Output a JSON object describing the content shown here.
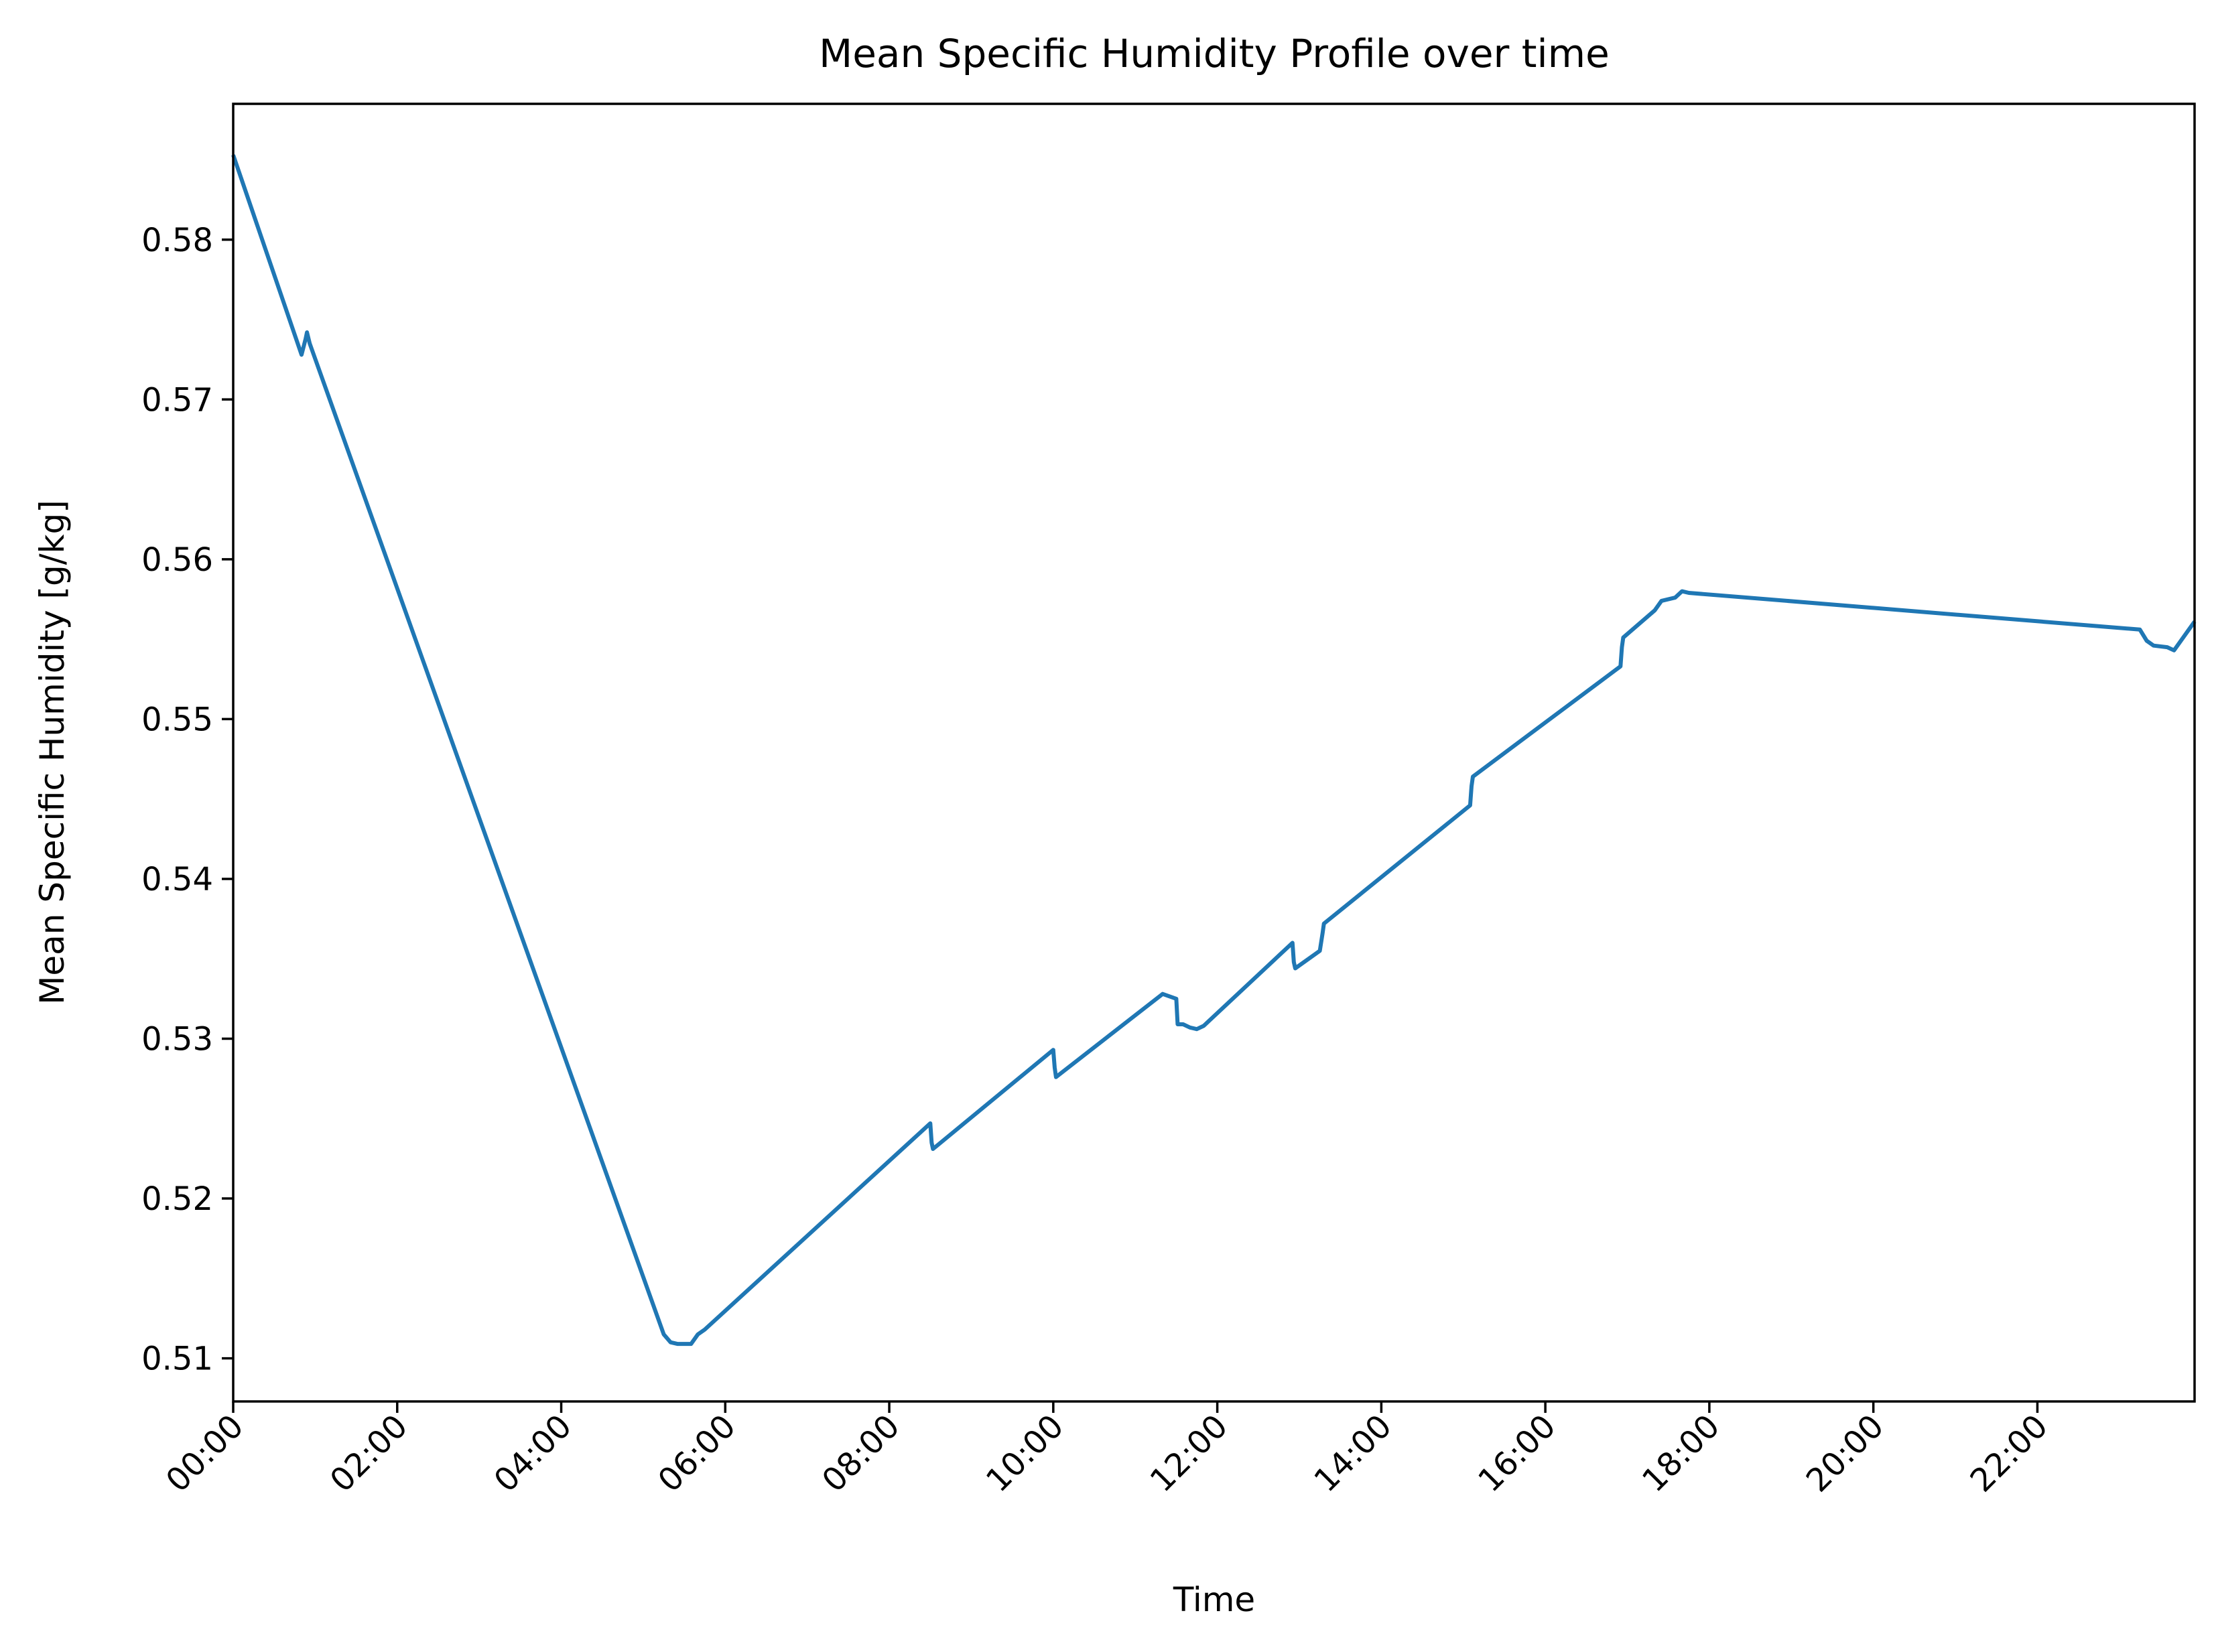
{
  "chart_data": {
    "type": "line",
    "title": "Mean Specific Humidity Profile over time",
    "xlabel": "Time",
    "ylabel": "Mean Specific Humidity [g/kg]",
    "x_unit": "time of day (HH:MM)",
    "xlim": [
      "00:00",
      "23:55"
    ],
    "ylim": [
      0.5073,
      0.5885
    ],
    "x_ticks": [
      "00:00",
      "02:00",
      "04:00",
      "06:00",
      "08:00",
      "10:00",
      "12:00",
      "14:00",
      "16:00",
      "18:00",
      "20:00",
      "22:00"
    ],
    "y_ticks": [
      0.51,
      0.52,
      0.53,
      0.54,
      0.55,
      0.56,
      0.57,
      0.58
    ],
    "grid": false,
    "legend": "none",
    "colors": {
      "line": "#1f77b4"
    },
    "series": [
      {
        "x": [
          "00:00",
          "00:50",
          "00:53",
          "00:54",
          "00:56",
          "05:15",
          "05:20",
          "05:25",
          "05:35",
          "05:40",
          "05:45",
          "08:30",
          "08:31",
          "08:32",
          "10:00",
          "10:01",
          "10:02",
          "11:20",
          "11:30",
          "11:31",
          "11:35",
          "11:40",
          "11:45",
          "11:50",
          "12:55",
          "12:56",
          "12:57",
          "13:15",
          "13:17",
          "13:18",
          "15:05",
          "15:06",
          "15:07",
          "16:55",
          "16:56",
          "16:57",
          "17:20",
          "17:25",
          "17:35",
          "17:40",
          "17:45",
          "23:15",
          "23:20",
          "23:25",
          "23:35",
          "23:40",
          "23:55"
        ],
        "y": [
          0.5853,
          0.5728,
          0.5738,
          0.5742,
          0.5735,
          0.5115,
          0.511,
          0.5109,
          0.5109,
          0.5115,
          0.5118,
          0.5247,
          0.5235,
          0.5231,
          0.5293,
          0.5282,
          0.5276,
          0.5328,
          0.5325,
          0.5309,
          0.5309,
          0.5307,
          0.5306,
          0.5308,
          0.536,
          0.5348,
          0.5344,
          0.5355,
          0.5366,
          0.5372,
          0.5446,
          0.5458,
          0.5464,
          0.5533,
          0.5545,
          0.5551,
          0.5568,
          0.5574,
          0.5576,
          0.558,
          0.5579,
          0.5556,
          0.5549,
          0.5546,
          0.5545,
          0.5543,
          0.5561
        ]
      }
    ]
  }
}
